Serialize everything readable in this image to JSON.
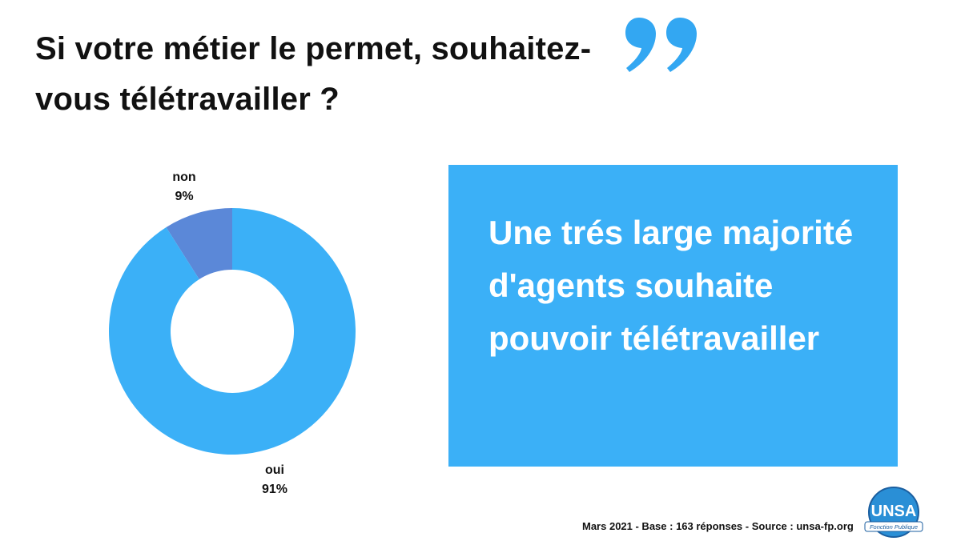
{
  "title": "Si votre métier le permet, souhaitez-vous télétravailler ?",
  "callout": {
    "text": "Une trés large majorité d'agents souhaite pouvoir télétravailler"
  },
  "source": "Mars 2021 - Base : 163 réponses - Source : unsa-fp.org",
  "logo": {
    "text": "UNSA Fonction Publique"
  },
  "icons": {
    "quote": "closing-quote-icon"
  },
  "colors": {
    "main_blue": "#3bb0f7",
    "secondary_blue": "#5b88d8",
    "quote_blue": "#33a7f2"
  },
  "chart_data": {
    "type": "pie",
    "donut": true,
    "slices": [
      {
        "label": "non",
        "value": 9,
        "display": "9%",
        "color": "#5b88d8"
      },
      {
        "label": "oui",
        "value": 91,
        "display": "91%",
        "color": "#3bb0f7"
      }
    ]
  }
}
